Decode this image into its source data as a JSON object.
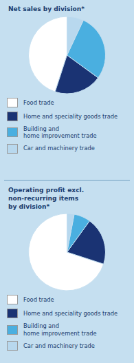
{
  "chart_data": [
    {
      "type": "pie",
      "title": "Net sales by division*",
      "categories": [
        "Food trade",
        "Home and speciality goods trade",
        "Building and\nhome improvement trade",
        "Car and machinery trade"
      ],
      "values": [
        45,
        20,
        28,
        7
      ],
      "colors": [
        "#ffffff",
        "#1a3373",
        "#4aafe0",
        "#b8d8ee"
      ],
      "legend": "bottom"
    },
    {
      "type": "pie",
      "title": "Operating profit excl.\nnon-recurring items\nby division*",
      "categories": [
        "Food trade",
        "Home and speciality goods trade",
        "Building and\nhome improvement trade",
        "Car and machinery trade"
      ],
      "values": [
        70,
        20,
        7,
        3
      ],
      "colors": [
        "#ffffff",
        "#1a3373",
        "#4aafe0",
        "#b8d8ee"
      ],
      "legend": "bottom"
    }
  ]
}
